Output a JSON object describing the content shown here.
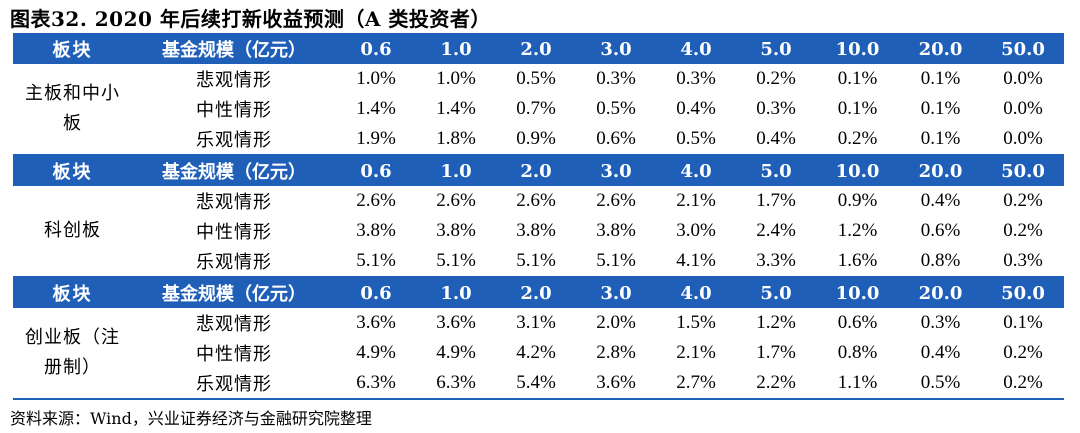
{
  "title": "图表32. 2020 年后续打新收益预测（A 类投资者）",
  "source": "资料来源：Wind，兴业证券经济与金融研究院整理",
  "header": {
    "col_board": "板块",
    "col_scale": "基金规模（亿元）",
    "scales": [
      "0.6",
      "1.0",
      "2.0",
      "3.0",
      "4.0",
      "5.0",
      "10.0",
      "20.0",
      "50.0"
    ]
  },
  "sections": [
    {
      "board": "主板和中小板",
      "rows": [
        {
          "scenario": "悲观情形",
          "values": [
            "1.0%",
            "1.0%",
            "0.5%",
            "0.3%",
            "0.3%",
            "0.2%",
            "0.1%",
            "0.1%",
            "0.0%"
          ]
        },
        {
          "scenario": "中性情形",
          "values": [
            "1.4%",
            "1.4%",
            "0.7%",
            "0.5%",
            "0.4%",
            "0.3%",
            "0.1%",
            "0.1%",
            "0.0%"
          ]
        },
        {
          "scenario": "乐观情形",
          "values": [
            "1.9%",
            "1.8%",
            "0.9%",
            "0.6%",
            "0.5%",
            "0.4%",
            "0.2%",
            "0.1%",
            "0.0%"
          ]
        }
      ]
    },
    {
      "board": "科创板",
      "rows": [
        {
          "scenario": "悲观情形",
          "values": [
            "2.6%",
            "2.6%",
            "2.6%",
            "2.6%",
            "2.1%",
            "1.7%",
            "0.9%",
            "0.4%",
            "0.2%"
          ]
        },
        {
          "scenario": "中性情形",
          "values": [
            "3.8%",
            "3.8%",
            "3.8%",
            "3.8%",
            "3.0%",
            "2.4%",
            "1.2%",
            "0.6%",
            "0.2%"
          ]
        },
        {
          "scenario": "乐观情形",
          "values": [
            "5.1%",
            "5.1%",
            "5.1%",
            "5.1%",
            "4.1%",
            "3.3%",
            "1.6%",
            "0.8%",
            "0.3%"
          ]
        }
      ]
    },
    {
      "board": "创业板（注册制）",
      "rows": [
        {
          "scenario": "悲观情形",
          "values": [
            "3.6%",
            "3.6%",
            "3.1%",
            "2.0%",
            "1.5%",
            "1.2%",
            "0.6%",
            "0.3%",
            "0.1%"
          ]
        },
        {
          "scenario": "中性情形",
          "values": [
            "4.9%",
            "4.9%",
            "4.2%",
            "2.8%",
            "2.1%",
            "1.7%",
            "0.8%",
            "0.4%",
            "0.2%"
          ]
        },
        {
          "scenario": "乐观情形",
          "values": [
            "6.3%",
            "6.3%",
            "5.4%",
            "3.6%",
            "2.7%",
            "2.2%",
            "1.1%",
            "0.5%",
            "0.2%"
          ]
        }
      ]
    }
  ],
  "colors": {
    "header_bg": "#1f5fb8",
    "header_text": "#ffffff"
  }
}
